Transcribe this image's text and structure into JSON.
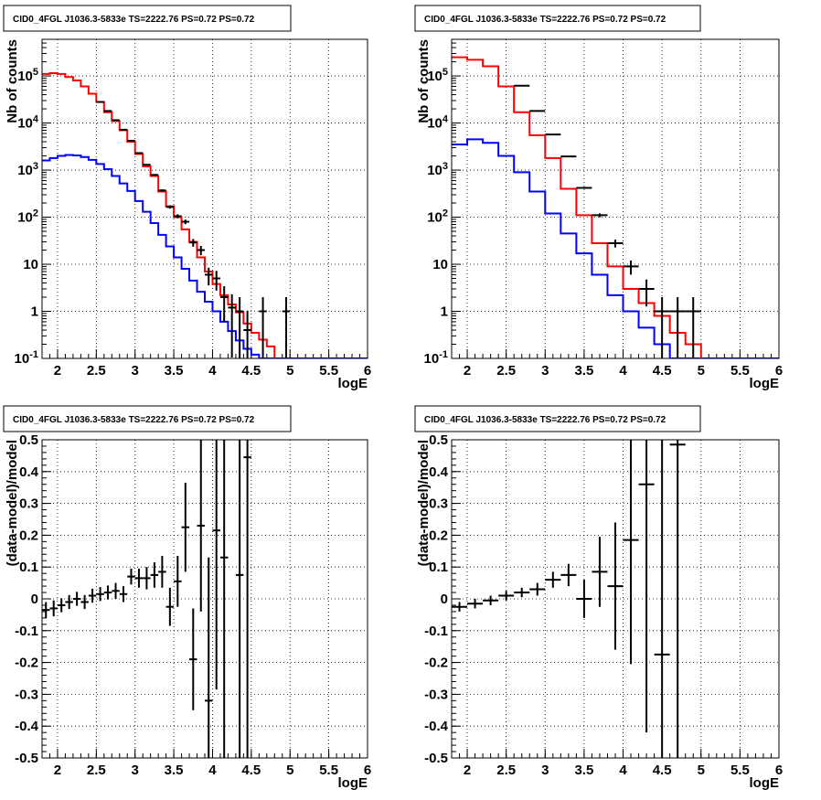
{
  "chart_data": [
    {
      "type": "line",
      "title": "CID0_4FGL J1036.3-5833e TS=2222.76 PS=0.72 PS=0.72",
      "xlabel": "logE",
      "ylabel": "Nb of counts",
      "xlim": [
        1.8,
        6.0
      ],
      "ylim": [
        0.1,
        600000
      ],
      "yscale": "log",
      "grid": true,
      "x_ticks": [
        "2",
        "2.5",
        "3",
        "3.5",
        "4",
        "4.5",
        "5",
        "5.5",
        "6"
      ],
      "y_ticks": [
        "10^-1",
        "1",
        "10",
        "10^2",
        "10^3",
        "10^4",
        "10^5"
      ],
      "bin_edges": [
        1.8,
        1.9,
        2.0,
        2.1,
        2.2,
        2.3,
        2.4,
        2.5,
        2.6,
        2.7,
        2.8,
        2.9,
        3.0,
        3.1,
        3.2,
        3.3,
        3.4,
        3.5,
        3.6,
        3.7,
        3.8,
        3.9,
        4.0,
        4.1,
        4.2,
        4.3,
        4.4,
        4.5,
        4.6,
        4.7,
        4.8,
        4.9,
        5.0,
        5.1,
        5.2,
        5.3,
        5.4,
        5.5,
        5.6,
        5.7,
        5.8,
        5.9,
        6.0
      ],
      "series": [
        {
          "style": "step",
          "color": "#ff0000",
          "values": [
            110000,
            115000,
            110000,
            95000,
            80000,
            60000,
            42000,
            28000,
            17000,
            11000,
            7000,
            4000,
            2200,
            1200,
            750,
            350,
            170,
            100,
            55,
            30,
            14,
            7,
            3.8,
            2.2,
            1.4,
            0.95,
            0.55,
            0.35,
            0.25,
            0.18,
            0.1,
            0.1,
            0.1,
            0.1,
            0.1,
            0.1,
            0.1,
            0.1,
            0.1,
            0.1,
            0.1,
            0.1
          ]
        },
        {
          "style": "step",
          "color": "#0000ff",
          "values": [
            1600,
            1800,
            2000,
            2100,
            2050,
            1900,
            1650,
            1350,
            1050,
            750,
            520,
            360,
            220,
            130,
            75,
            42,
            24,
            14,
            8,
            4.5,
            2.6,
            1.6,
            1.0,
            0.6,
            0.38,
            0.24,
            0.16,
            0.12,
            0.1,
            0.1,
            0.1,
            0.1,
            0.1,
            0.1,
            0.1,
            0.1,
            0.1,
            0.1,
            0.1,
            0.1,
            0.1,
            0.1
          ]
        },
        {
          "style": "errorbars",
          "color": "#000000",
          "x": [
            2.55,
            2.65,
            2.75,
            2.85,
            2.95,
            3.05,
            3.15,
            3.25,
            3.35,
            3.45,
            3.55,
            3.65,
            3.75,
            3.85,
            3.95,
            4.05,
            4.15,
            4.25,
            4.35,
            4.45,
            4.65,
            4.95
          ],
          "values": [
            28000,
            18000,
            11500,
            7200,
            4200,
            2300,
            1300,
            790,
            370,
            165,
            105,
            80,
            29,
            20,
            6,
            5,
            2,
            1.2,
            1,
            0.4,
            1,
            1
          ],
          "xerr": 0.05
        }
      ]
    },
    {
      "type": "line",
      "title": "CID0_4FGL J1036.3-5833e TS=2222.76 PS=0.72 PS=0.72",
      "xlabel": "logE",
      "ylabel": "Nb of counts",
      "xlim": [
        1.8,
        6.0
      ],
      "ylim": [
        0.1,
        600000
      ],
      "yscale": "log",
      "grid": true,
      "x_ticks": [
        "2",
        "2.5",
        "3",
        "3.5",
        "4",
        "4.5",
        "5",
        "5.5",
        "6"
      ],
      "y_ticks": [
        "10^-1",
        "1",
        "10",
        "10^2",
        "10^3",
        "10^4",
        "10^5"
      ],
      "bin_edges": [
        1.8,
        2.0,
        2.2,
        2.4,
        2.6,
        2.8,
        3.0,
        3.2,
        3.4,
        3.6,
        3.8,
        4.0,
        4.2,
        4.4,
        4.6,
        4.8,
        5.0,
        5.2,
        5.4,
        5.6,
        5.8,
        6.0
      ],
      "series": [
        {
          "style": "step",
          "color": "#ff0000",
          "values": [
            250000,
            220000,
            160000,
            60000,
            17000,
            5500,
            1800,
            400,
            110,
            28,
            9,
            3,
            1.5,
            0.8,
            0.35,
            0.2,
            0.1,
            0.1,
            0.1,
            0.1,
            0.1
          ]
        },
        {
          "style": "step",
          "color": "#0000ff",
          "values": [
            3500,
            4500,
            3800,
            2000,
            900,
            350,
            120,
            45,
            17,
            6,
            2.2,
            1.0,
            0.45,
            0.2,
            0.1,
            0.1,
            0.1,
            0.1,
            0.1,
            0.1,
            0.1
          ]
        },
        {
          "style": "errorbars",
          "color": "#000000",
          "x": [
            2.7,
            2.9,
            3.1,
            3.3,
            3.5,
            3.7,
            3.9,
            4.1,
            4.3,
            4.5,
            4.7,
            4.9
          ],
          "values": [
            62000,
            18000,
            5700,
            1950,
            420,
            110,
            28,
            9,
            3,
            1,
            1,
            1
          ],
          "xerr": 0.1
        }
      ]
    },
    {
      "type": "scatter",
      "title": "CID0_4FGL J1036.3-5833e TS=2222.76 PS=0.72 PS=0.72",
      "xlabel": "logE",
      "ylabel": "(data-model)/model",
      "xlim": [
        1.8,
        6.0
      ],
      "ylim": [
        -0.5,
        0.5
      ],
      "grid": true,
      "x_ticks": [
        "2",
        "2.5",
        "3",
        "3.5",
        "4",
        "4.5",
        "5",
        "5.5",
        "6"
      ],
      "y_ticks": [
        "-0.5",
        "-0.4",
        "-0.3",
        "-0.2",
        "-0.1",
        "0",
        "0.1",
        "0.2",
        "0.3",
        "0.4",
        "0.5"
      ],
      "xerr": 0.05,
      "points": [
        {
          "x": 1.85,
          "y": -0.035,
          "err": 0.025
        },
        {
          "x": 1.95,
          "y": -0.03,
          "err": 0.025
        },
        {
          "x": 2.05,
          "y": -0.02,
          "err": 0.022
        },
        {
          "x": 2.15,
          "y": -0.01,
          "err": 0.022
        },
        {
          "x": 2.25,
          "y": 0.0,
          "err": 0.022
        },
        {
          "x": 2.35,
          "y": -0.01,
          "err": 0.022
        },
        {
          "x": 2.45,
          "y": 0.01,
          "err": 0.022
        },
        {
          "x": 2.55,
          "y": 0.015,
          "err": 0.022
        },
        {
          "x": 2.65,
          "y": 0.02,
          "err": 0.022
        },
        {
          "x": 2.75,
          "y": 0.025,
          "err": 0.025
        },
        {
          "x": 2.85,
          "y": 0.015,
          "err": 0.025
        },
        {
          "x": 2.95,
          "y": 0.07,
          "err": 0.025
        },
        {
          "x": 3.05,
          "y": 0.065,
          "err": 0.03
        },
        {
          "x": 3.15,
          "y": 0.065,
          "err": 0.035
        },
        {
          "x": 3.25,
          "y": 0.075,
          "err": 0.04
        },
        {
          "x": 3.35,
          "y": 0.085,
          "err": 0.05
        },
        {
          "x": 3.45,
          "y": -0.025,
          "err": 0.06
        },
        {
          "x": 3.55,
          "y": 0.055,
          "err": 0.08
        },
        {
          "x": 3.65,
          "y": 0.225,
          "err": 0.14
        },
        {
          "x": 3.75,
          "y": -0.19,
          "err": 0.16
        },
        {
          "x": 3.85,
          "y": 0.23,
          "err": 0.27
        },
        {
          "x": 3.95,
          "y": -0.32,
          "err": 0.45
        },
        {
          "x": 4.05,
          "y": 0.215,
          "err": 0.5
        },
        {
          "x": 4.15,
          "y": 0.13,
          "err": 0.8
        },
        {
          "x": 4.35,
          "y": 0.075,
          "err": 0.9
        },
        {
          "x": 4.45,
          "y": 0.445,
          "err": 1.0
        }
      ]
    },
    {
      "type": "scatter",
      "title": "CID0_4FGL J1036.3-5833e TS=2222.76 PS=0.72 PS=0.72",
      "xlabel": "logE",
      "ylabel": "(data-model)/model",
      "xlim": [
        1.8,
        6.0
      ],
      "ylim": [
        -0.5,
        0.5
      ],
      "grid": true,
      "x_ticks": [
        "2",
        "2.5",
        "3",
        "3.5",
        "4",
        "4.5",
        "5",
        "5.5",
        "6"
      ],
      "y_ticks": [
        "-0.5",
        "-0.4",
        "-0.3",
        "-0.2",
        "-0.1",
        "0",
        "0.1",
        "0.2",
        "0.3",
        "0.4",
        "0.5"
      ],
      "xerr": 0.1,
      "points": [
        {
          "x": 1.9,
          "y": -0.025,
          "err": 0.015
        },
        {
          "x": 2.1,
          "y": -0.015,
          "err": 0.015
        },
        {
          "x": 2.3,
          "y": -0.005,
          "err": 0.015
        },
        {
          "x": 2.5,
          "y": 0.01,
          "err": 0.015
        },
        {
          "x": 2.7,
          "y": 0.02,
          "err": 0.015
        },
        {
          "x": 2.9,
          "y": 0.03,
          "err": 0.02
        },
        {
          "x": 3.1,
          "y": 0.06,
          "err": 0.025
        },
        {
          "x": 3.3,
          "y": 0.075,
          "err": 0.035
        },
        {
          "x": 3.5,
          "y": 0.0,
          "err": 0.06
        },
        {
          "x": 3.7,
          "y": 0.085,
          "err": 0.11
        },
        {
          "x": 3.9,
          "y": 0.04,
          "err": 0.2
        },
        {
          "x": 4.1,
          "y": 0.185,
          "err": 0.39
        },
        {
          "x": 4.3,
          "y": 0.36,
          "err": 0.78
        },
        {
          "x": 4.5,
          "y": -0.175,
          "err": 1.0
        },
        {
          "x": 4.7,
          "y": 0.485,
          "err": 1.1
        }
      ]
    }
  ]
}
